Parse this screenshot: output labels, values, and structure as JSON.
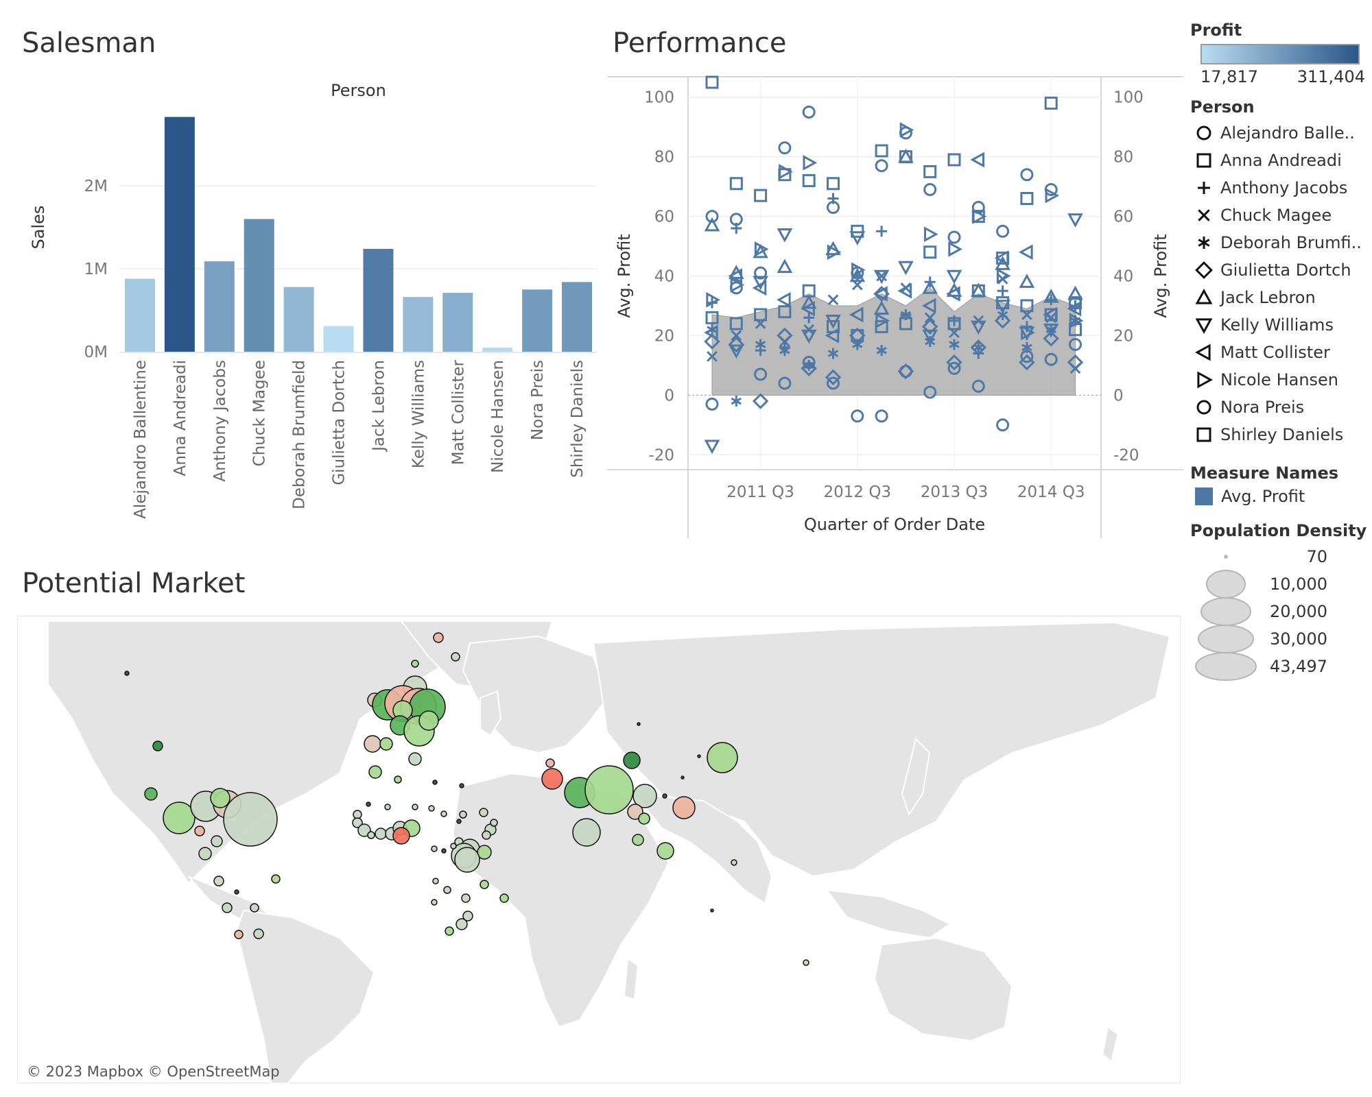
{
  "titles": {
    "salesman": "Salesman",
    "performance": "Performance",
    "market": "Potential Market"
  },
  "chart_data": [
    {
      "type": "bar",
      "name": "salesman",
      "header": "Person",
      "xlabel": "",
      "ylabel": "Sales",
      "ylim": [
        0,
        3000000
      ],
      "yticks": [
        0,
        1000000,
        2000000
      ],
      "ytick_labels": [
        "0M",
        "1M",
        "2M"
      ],
      "categories": [
        "Alejandro Ballentine",
        "Anna Andreadi",
        "Anthony Jacobs",
        "Chuck Magee",
        "Deborah Brumfield",
        "Giulietta Dortch",
        "Jack Lebron",
        "Kelly Williams",
        "Matt Collister",
        "Nicole Hansen",
        "Nora Preis",
        "Shirley Daniels"
      ],
      "values": [
        880000,
        2830000,
        1090000,
        1600000,
        780000,
        310000,
        1240000,
        660000,
        710000,
        50000,
        750000,
        840000
      ],
      "profits": [
        60000,
        311404,
        150000,
        190000,
        100000,
        17817,
        230000,
        90000,
        120000,
        20000,
        160000,
        170000
      ],
      "grid": true
    },
    {
      "type": "scatter",
      "name": "performance",
      "xlabel": "Quarter of Order Date",
      "ylabel": "Avg. Profit",
      "ylabel_right": "Avg. Profit",
      "ylim": [
        -25,
        105
      ],
      "yticks": [
        -20,
        0,
        20,
        40,
        60,
        80,
        100
      ],
      "xtick_labels": [
        "2011 Q3",
        "2012 Q3",
        "2013 Q3",
        "2014 Q3"
      ],
      "x_categories": [
        "2011 Q1",
        "2011 Q2",
        "2011 Q3",
        "2011 Q4",
        "2012 Q1",
        "2012 Q2",
        "2012 Q3",
        "2012 Q4",
        "2013 Q1",
        "2013 Q2",
        "2013 Q3",
        "2013 Q4",
        "2014 Q1",
        "2014 Q2",
        "2014 Q3",
        "2014 Q4"
      ],
      "area": {
        "name": "Avg. Profit",
        "values": [
          27,
          26,
          28,
          30,
          34,
          30,
          30,
          34,
          30,
          36,
          28,
          34,
          31,
          29,
          33,
          30
        ]
      },
      "series": [
        {
          "name": "Alejandro Balle..",
          "marker": "circle",
          "values": [
            60,
            59,
            41,
            83,
            95,
            63,
            41,
            77,
            88,
            69,
            53,
            63,
            55,
            74,
            69,
            17
          ]
        },
        {
          "name": "Anna Andreadi",
          "marker": "square",
          "values": [
            105,
            71,
            67,
            74,
            72,
            71,
            55,
            82,
            80,
            75,
            79,
            60,
            46,
            66,
            98,
            22
          ]
        },
        {
          "name": "Anthony Jacobs",
          "marker": "plus",
          "values": [
            31,
            56,
            15,
            16,
            26,
            66,
            40,
            55,
            27,
            38,
            25,
            14,
            35,
            23,
            32,
            30
          ]
        },
        {
          "name": "Chuck Magee",
          "marker": "x",
          "values": [
            13,
            20,
            24,
            18,
            22,
            32,
            37,
            40,
            36,
            26,
            21,
            25,
            39,
            27,
            26,
            9
          ]
        },
        {
          "name": "Deborah Brumfi..",
          "marker": "asterisk",
          "values": [
            22,
            -2,
            17,
            15,
            10,
            14,
            17,
            15,
            27,
            18,
            17,
            16,
            27,
            16,
            22,
            25
          ]
        },
        {
          "name": "Giulietta Dortch",
          "marker": "diamond",
          "values": [
            18,
            17,
            -2,
            20,
            9,
            6,
            20,
            34,
            8,
            23,
            11,
            16,
            25,
            11,
            19,
            11
          ]
        },
        {
          "name": "Jack Lebron",
          "marker": "triangle-up",
          "values": [
            57,
            41,
            48,
            43,
            31,
            49,
            40,
            29,
            80,
            36,
            35,
            35,
            44,
            38,
            33,
            34
          ]
        },
        {
          "name": "Kelly Williams",
          "marker": "triangle-down",
          "values": [
            -17,
            15,
            38,
            54,
            20,
            25,
            53,
            40,
            43,
            20,
            40,
            23,
            30,
            21,
            22,
            59
          ]
        },
        {
          "name": "Matt Collister",
          "marker": "triangle-left",
          "values": [
            21,
            40,
            36,
            32,
            29,
            20,
            27,
            34,
            35,
            30,
            34,
            79,
            46,
            48,
            27,
            29
          ]
        },
        {
          "name": "Nicole Hansen",
          "marker": "triangle-right",
          "values": [
            32,
            37,
            49,
            75,
            78,
            48,
            42,
            25,
            89,
            54,
            49,
            60,
            40,
            21,
            67,
            25
          ]
        },
        {
          "name": "Nora Preis",
          "marker": "circle",
          "values": [
            -3,
            36,
            7,
            4,
            11,
            4,
            -7,
            -7,
            8,
            1,
            9,
            3,
            -10,
            13,
            12,
            31
          ]
        },
        {
          "name": "Shirley Daniels",
          "marker": "square",
          "values": [
            26,
            24,
            27,
            28,
            35,
            23,
            20,
            23,
            24,
            48,
            24,
            35,
            31,
            30,
            27,
            31
          ]
        }
      ]
    },
    {
      "type": "map",
      "name": "potential-market",
      "attribution": "© 2023 Mapbox © OpenStreetMap"
    }
  ],
  "legend": {
    "profit": {
      "title": "Profit",
      "min_label": "17,817",
      "max_label": "311,404",
      "color_min": "#b9dcf0",
      "color_max": "#2a5788"
    },
    "person": {
      "title": "Person"
    },
    "measure": {
      "title": "Measure Names",
      "item": "Avg. Profit",
      "color": "#4e79a7"
    },
    "density": {
      "title": "Population Density",
      "items": [
        "70",
        "10,000",
        "20,000",
        "30,000",
        "43,497"
      ]
    }
  },
  "colors": {
    "marker": "#4e79a7",
    "area_fill": "#b4b4b4",
    "green_dark": "#2e8b3e",
    "green": "#59b35a",
    "green_light": "#a6d98f",
    "neutral": "#c9d6c3",
    "red_light": "#efb3a0",
    "red": "#f2705c",
    "tan": "#e0c6b5"
  }
}
